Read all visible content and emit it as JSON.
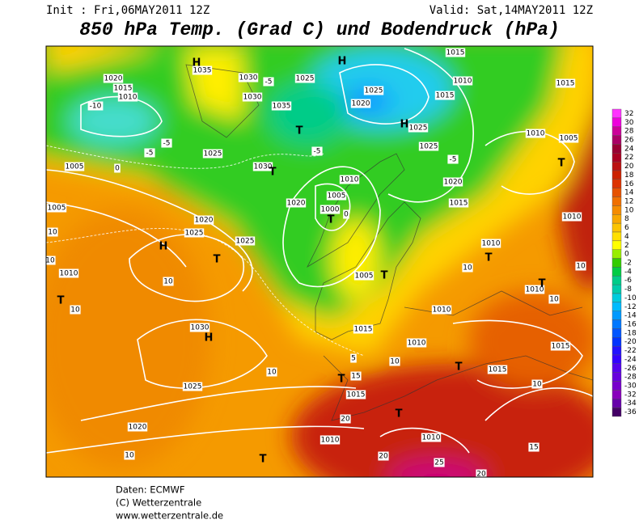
{
  "header": {
    "init": "Init : Fri,06MAY2011 12Z",
    "valid": "Valid: Sat,14MAY2011 12Z",
    "title": "850 hPa Temp. (Grad C) und Bodendruck (hPa)"
  },
  "colorbar": [
    {
      "value": 32,
      "color": "#ff33ff"
    },
    {
      "value": 30,
      "color": "#ee00dd"
    },
    {
      "value": 28,
      "color": "#cc0099"
    },
    {
      "value": 26,
      "color": "#aa0066"
    },
    {
      "value": 24,
      "color": "#990033"
    },
    {
      "value": 22,
      "color": "#aa0022"
    },
    {
      "value": 20,
      "color": "#bb1111"
    },
    {
      "value": 18,
      "color": "#cc2200"
    },
    {
      "value": 16,
      "color": "#dd3300"
    },
    {
      "value": 14,
      "color": "#e65200"
    },
    {
      "value": 12,
      "color": "#f07000"
    },
    {
      "value": 10,
      "color": "#f58c00"
    },
    {
      "value": 8,
      "color": "#f8a800"
    },
    {
      "value": 6,
      "color": "#fbc400"
    },
    {
      "value": 4,
      "color": "#ffe000"
    },
    {
      "value": 2,
      "color": "#ffff00"
    },
    {
      "value": 0,
      "color": "#99ee00"
    },
    {
      "value": -2,
      "color": "#33cc00"
    },
    {
      "value": -4,
      "color": "#00cc44"
    },
    {
      "value": -6,
      "color": "#00cc88"
    },
    {
      "value": -8,
      "color": "#00ccaa"
    },
    {
      "value": -10,
      "color": "#00ccdd"
    },
    {
      "value": -12,
      "color": "#00bbff"
    },
    {
      "value": -14,
      "color": "#0099ff"
    },
    {
      "value": -16,
      "color": "#0077ff"
    },
    {
      "value": -18,
      "color": "#0055ff"
    },
    {
      "value": -20,
      "color": "#0033ff"
    },
    {
      "value": -22,
      "color": "#2211ff"
    },
    {
      "value": -24,
      "color": "#3300ff"
    },
    {
      "value": -26,
      "color": "#5500ee"
    },
    {
      "value": -28,
      "color": "#6600dd"
    },
    {
      "value": -30,
      "color": "#7700cc"
    },
    {
      "value": -32,
      "color": "#8800bb"
    },
    {
      "value": -34,
      "color": "#6600aa"
    },
    {
      "value": -36,
      "color": "#440066"
    }
  ],
  "map": {
    "labels": [
      "1020",
      "1015",
      "1010",
      "-10",
      "-5",
      "-5",
      "1005",
      "0",
      "1005",
      "10",
      "10",
      "1010",
      "T",
      "10",
      "H",
      "1020",
      "1025",
      "T",
      "1025",
      "10",
      "1030",
      "H",
      "1025",
      "1020",
      "10",
      "10",
      "H",
      "1035",
      "1030",
      "-5",
      "1030",
      "1025",
      "1035",
      "H",
      "1025",
      "1020",
      "-5",
      "T",
      "1030",
      "T",
      "1025",
      "1010",
      "1005",
      "1000",
      "T",
      "0",
      "1020",
      "1005",
      "T",
      "1015",
      "1010",
      "1010",
      "T",
      "1015",
      "1015",
      "T",
      "1015",
      "20",
      "1010",
      "1010",
      "20",
      "25",
      "T",
      "T",
      "15",
      "10",
      "5",
      "1010",
      "T",
      "10",
      "1010",
      "T",
      "10",
      "1010",
      "T",
      "1005",
      "1010",
      "1015",
      "1015",
      "1010",
      "1015",
      "H",
      "1025",
      "1025",
      "1020",
      "1015",
      "-5",
      "10",
      "15",
      "20",
      "10"
    ]
  },
  "footer": {
    "lines": [
      "Daten: ECMWF",
      "(C) Wetterzentrale",
      "www.wetterzentrale.de"
    ]
  }
}
